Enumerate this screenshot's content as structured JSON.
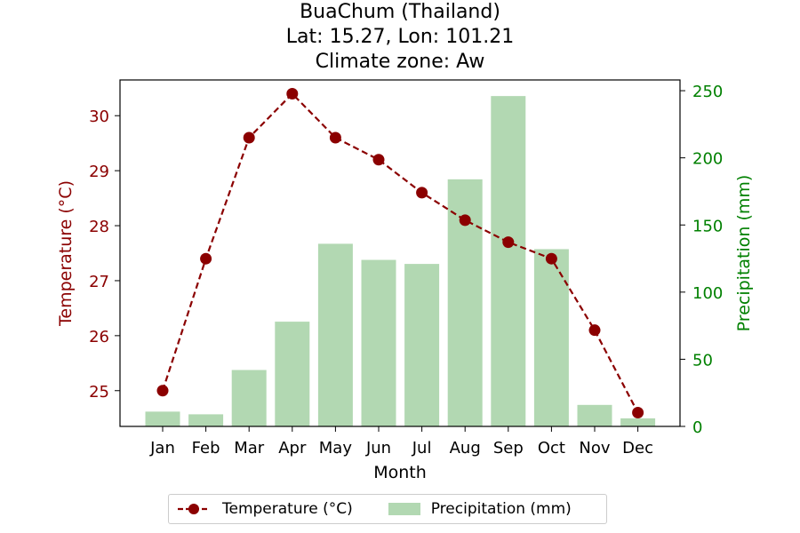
{
  "title": {
    "line1": "BuaChum (Thailand)",
    "line2": "Lat: 15.27, Lon: 101.21",
    "line3": "Climate zone: Aw"
  },
  "colors": {
    "temperature": "#8b0000",
    "precipitation_bar": "#b2d8b2",
    "precipitation_axis": "#008000"
  },
  "chart_data": {
    "type": "bar",
    "categories": [
      "Jan",
      "Feb",
      "Mar",
      "Apr",
      "May",
      "Jun",
      "Jul",
      "Aug",
      "Sep",
      "Oct",
      "Nov",
      "Dec"
    ],
    "series": [
      {
        "name": "Temperature (°C)",
        "type": "line",
        "axis": "left",
        "values": [
          25.0,
          27.4,
          29.6,
          30.4,
          29.6,
          29.2,
          28.6,
          28.1,
          27.7,
          27.4,
          26.1,
          24.6
        ]
      },
      {
        "name": "Precipitation (mm)",
        "type": "bar",
        "axis": "right",
        "values": [
          11,
          9,
          42,
          78,
          136,
          124,
          121,
          184,
          246,
          132,
          16,
          6
        ]
      }
    ],
    "xlabel": "Month",
    "ylabel_left": "Temperature (°C)",
    "ylabel_right": "Precipitation (mm)",
    "ylim_left": [
      24.35,
      30.65
    ],
    "yticks_left": [
      25,
      26,
      27,
      28,
      29,
      30
    ],
    "ylim_right": [
      0,
      258
    ],
    "yticks_right": [
      0,
      50,
      100,
      150,
      200,
      250
    ],
    "grid": false,
    "legend_position": "bottom-center"
  }
}
